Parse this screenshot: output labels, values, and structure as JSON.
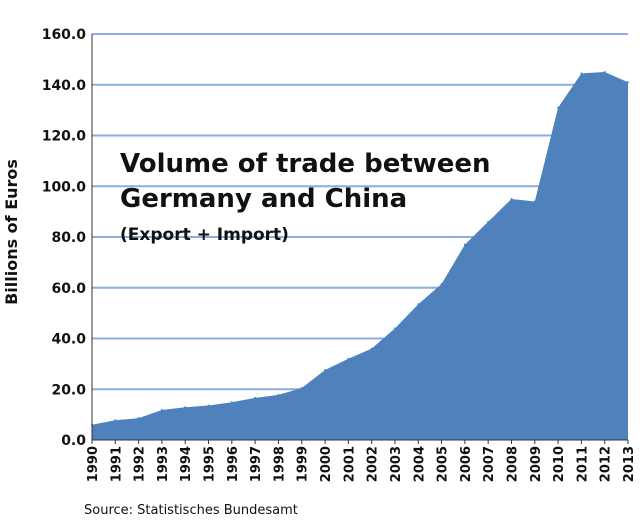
{
  "chart_data": {
    "type": "area",
    "title": "Volume of trade between",
    "title_line2": "Germany and China",
    "subtitle": "(Export + Import)",
    "ylabel": "Billions of Euros",
    "xlabel": "",
    "source": "Source: Statistisches Bundesamt",
    "ylim": [
      0,
      160
    ],
    "y_ticks": [
      "0.0",
      "20.0",
      "40.0",
      "60.0",
      "80.0",
      "100.0",
      "120.0",
      "140.0",
      "160.0"
    ],
    "x": [
      "1990",
      "1991",
      "1992",
      "1993",
      "1994",
      "1995",
      "1996",
      "1997",
      "1998",
      "1999",
      "2000",
      "2001",
      "2002",
      "2003",
      "2004",
      "2005",
      "2006",
      "2007",
      "2008",
      "2009",
      "2010",
      "2011",
      "2012",
      "2013"
    ],
    "series": [
      {
        "values": [
          6.0,
          7.8,
          8.6,
          11.8,
          12.9,
          13.6,
          14.9,
          16.6,
          17.8,
          20.5,
          27.6,
          32.0,
          36.0,
          44.0,
          53.5,
          61.5,
          77.0,
          86.0,
          95.0,
          94.0,
          131.0,
          144.5,
          145.0,
          141.0
        ],
        "color": "#4f81bd"
      }
    ],
    "grid": true,
    "grid_color": "#8aaee0",
    "legend": "none"
  }
}
